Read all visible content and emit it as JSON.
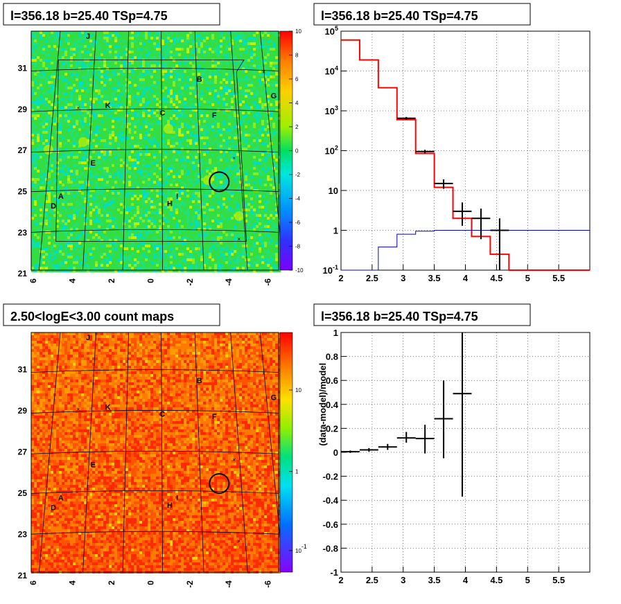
{
  "chart_data": [
    {
      "type": "heatmap",
      "title": "l=356.18 b=25.40 TSp=4.75",
      "x_ticks": [
        "6",
        "4",
        "2",
        "0",
        "-2",
        "-4",
        "-6"
      ],
      "y_ticks": [
        "31",
        "29",
        "27",
        "25",
        "23",
        "21"
      ],
      "colorbar_ticks": [
        "10",
        "8",
        "6",
        "4",
        "2",
        "0",
        "-2",
        "-4",
        "-6",
        "-8",
        "-10"
      ],
      "zlim": [
        -10,
        10
      ],
      "source_labels": [
        "J",
        "B",
        "G",
        "K",
        "C",
        "F",
        "E",
        "A",
        "I",
        "D",
        "H"
      ]
    },
    {
      "type": "line",
      "title": "l=356.18 b=25.40 TSp=4.75",
      "log_y": true,
      "ylim": [
        0.1,
        100000
      ],
      "xlim": [
        2,
        6
      ],
      "x_ticks": [
        "2",
        "2.5",
        "3",
        "3.5",
        "4",
        "4.5",
        "5",
        "5.5"
      ],
      "y_ticks": [
        "10^5",
        "10^4",
        "10^3",
        "10^2",
        "10",
        "1",
        "10^-1"
      ],
      "grid": true,
      "series": [
        {
          "color": "#ff0000",
          "bin_edges": [
            2.0,
            2.3,
            2.6,
            2.9,
            3.2,
            3.5,
            3.8,
            4.1,
            4.4,
            4.7,
            5.0,
            5.3,
            5.6,
            5.9,
            6.0
          ],
          "values": [
            60000,
            19000,
            3800,
            600,
            85,
            12,
            2,
            0.7,
            0.25,
            0.1,
            0.1,
            0.1,
            0.1,
            0.1
          ]
        },
        {
          "color": "#0000cc",
          "bin_edges": [
            2.0,
            2.3,
            2.6,
            2.9,
            3.2,
            3.5,
            3.8,
            4.1,
            4.4,
            4.7,
            5.0,
            5.3,
            5.6,
            5.9,
            6.0
          ],
          "values": [
            0.05,
            0.1,
            0.38,
            0.8,
            0.95,
            1.0,
            1.0,
            1.0,
            1.0,
            1.0,
            1.0,
            1.0,
            1.0,
            1.0
          ]
        },
        {
          "color": "#000000",
          "points": [
            {
              "x": 3.05,
              "xerr": 0.15,
              "y": 650,
              "ylo": 600,
              "yhi": 700
            },
            {
              "x": 3.35,
              "xerr": 0.15,
              "y": 95,
              "ylo": 85,
              "yhi": 105
            },
            {
              "x": 3.65,
              "xerr": 0.15,
              "y": 15,
              "ylo": 11,
              "yhi": 19
            },
            {
              "x": 3.95,
              "xerr": 0.15,
              "y": 3,
              "ylo": 1.3,
              "yhi": 5
            },
            {
              "x": 4.25,
              "xerr": 0.15,
              "y": 2,
              "ylo": 0.6,
              "yhi": 3.5
            },
            {
              "x": 4.55,
              "xerr": 0.15,
              "y": 1,
              "ylo": 0.1,
              "yhi": 2
            }
          ]
        }
      ]
    },
    {
      "type": "heatmap",
      "title": "2.50<logE<3.00 count maps",
      "x_ticks": [
        "6",
        "4",
        "2",
        "0",
        "-2",
        "-4",
        "-6"
      ],
      "y_ticks": [
        "31",
        "29",
        "27",
        "25",
        "23",
        "21"
      ],
      "colorbar_ticks": [
        "10",
        "1",
        "10^-1"
      ],
      "log_z": true,
      "source_labels": [
        "J",
        "B",
        "G",
        "K",
        "C",
        "F",
        "E",
        "A",
        "I",
        "D",
        "H"
      ]
    },
    {
      "type": "scatter",
      "title": "l=356.18 b=25.40 TSp=4.75",
      "ylabel": "(data-model)/model",
      "xlim": [
        2,
        6
      ],
      "ylim": [
        -1,
        1
      ],
      "x_ticks": [
        "2",
        "2.5",
        "3",
        "3.5",
        "4",
        "4.5",
        "5",
        "5.5"
      ],
      "y_ticks": [
        "1",
        "0.8",
        "0.6",
        "0.4",
        "0.2",
        "0",
        "-0.2",
        "-0.4",
        "-0.6",
        "-0.8",
        "-1"
      ],
      "grid": true,
      "points": [
        {
          "x": 2.15,
          "xerr": 0.15,
          "y": 0.005,
          "ylo": -0.005,
          "yhi": 0.015
        },
        {
          "x": 2.45,
          "xerr": 0.15,
          "y": 0.02,
          "ylo": 0.005,
          "yhi": 0.035
        },
        {
          "x": 2.75,
          "xerr": 0.15,
          "y": 0.045,
          "ylo": 0.02,
          "yhi": 0.07
        },
        {
          "x": 3.05,
          "xerr": 0.15,
          "y": 0.12,
          "ylo": 0.08,
          "yhi": 0.17
        },
        {
          "x": 3.35,
          "xerr": 0.15,
          "y": 0.115,
          "ylo": -0.01,
          "yhi": 0.23
        },
        {
          "x": 3.65,
          "xerr": 0.15,
          "y": 0.28,
          "ylo": -0.05,
          "yhi": 0.6
        },
        {
          "x": 3.95,
          "xerr": 0.15,
          "y": 0.49,
          "ylo": -0.37,
          "yhi": 1.0
        }
      ]
    }
  ]
}
